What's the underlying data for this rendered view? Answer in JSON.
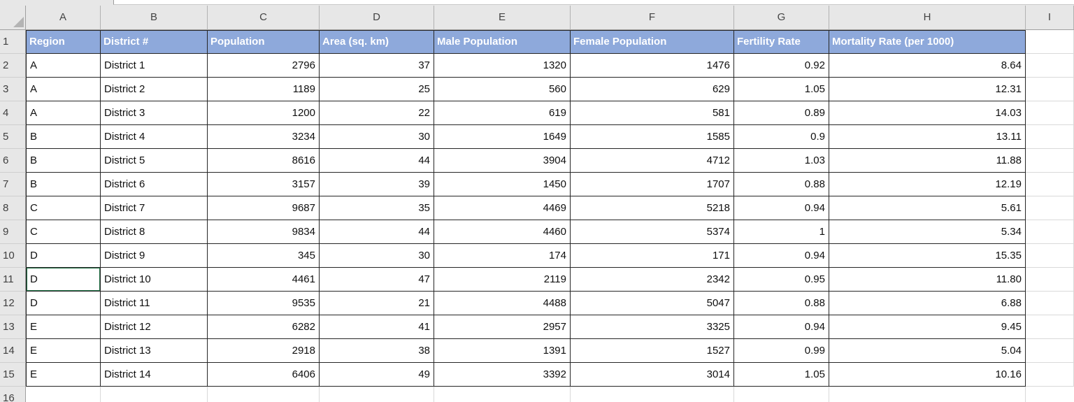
{
  "sheet": {
    "column_letters": [
      "A",
      "B",
      "C",
      "D",
      "E",
      "F",
      "G",
      "H",
      "I"
    ],
    "row_numbers": [
      "1",
      "2",
      "3",
      "4",
      "5",
      "6",
      "7",
      "8",
      "9",
      "10",
      "11",
      "12",
      "13",
      "14",
      "15",
      "16"
    ],
    "header_row": [
      "Region",
      "District #",
      "Population",
      "Area (sq. km)",
      "Male Population",
      "Female Population",
      "Fertility Rate",
      "Mortality Rate (per 1000)"
    ],
    "rows": [
      {
        "region": "A",
        "district": "District 1",
        "population": "2796",
        "area": "37",
        "male": "1320",
        "female": "1476",
        "fertility": "0.92",
        "mortality": "8.64"
      },
      {
        "region": "A",
        "district": "District 2",
        "population": "1189",
        "area": "25",
        "male": "560",
        "female": "629",
        "fertility": "1.05",
        "mortality": "12.31"
      },
      {
        "region": "A",
        "district": "District 3",
        "population": "1200",
        "area": "22",
        "male": "619",
        "female": "581",
        "fertility": "0.89",
        "mortality": "14.03"
      },
      {
        "region": "B",
        "district": "District 4",
        "population": "3234",
        "area": "30",
        "male": "1649",
        "female": "1585",
        "fertility": "0.9",
        "mortality": "13.11"
      },
      {
        "region": "B",
        "district": "District 5",
        "population": "8616",
        "area": "44",
        "male": "3904",
        "female": "4712",
        "fertility": "1.03",
        "mortality": "11.88"
      },
      {
        "region": "B",
        "district": "District 6",
        "population": "3157",
        "area": "39",
        "male": "1450",
        "female": "1707",
        "fertility": "0.88",
        "mortality": "12.19"
      },
      {
        "region": "C",
        "district": "District 7",
        "population": "9687",
        "area": "35",
        "male": "4469",
        "female": "5218",
        "fertility": "0.94",
        "mortality": "5.61"
      },
      {
        "region": "C",
        "district": "District 8",
        "population": "9834",
        "area": "44",
        "male": "4460",
        "female": "5374",
        "fertility": "1",
        "mortality": "5.34"
      },
      {
        "region": "D",
        "district": "District 9",
        "population": "345",
        "area": "30",
        "male": "174",
        "female": "171",
        "fertility": "0.94",
        "mortality": "15.35"
      },
      {
        "region": "D",
        "district": "District 10",
        "population": "4461",
        "area": "47",
        "male": "2119",
        "female": "2342",
        "fertility": "0.95",
        "mortality": "11.80"
      },
      {
        "region": "D",
        "district": "District 11",
        "population": "9535",
        "area": "21",
        "male": "4488",
        "female": "5047",
        "fertility": "0.88",
        "mortality": "6.88"
      },
      {
        "region": "E",
        "district": "District 12",
        "population": "6282",
        "area": "41",
        "male": "2957",
        "female": "3325",
        "fertility": "0.94",
        "mortality": "9.45"
      },
      {
        "region": "E",
        "district": "District 13",
        "population": "2918",
        "area": "38",
        "male": "1391",
        "female": "1527",
        "fertility": "0.99",
        "mortality": "5.04"
      },
      {
        "region": "E",
        "district": "District 14",
        "population": "6406",
        "area": "49",
        "male": "3392",
        "female": "3014",
        "fertility": "1.05",
        "mortality": "10.16"
      }
    ],
    "active_cell": "A11",
    "colors": {
      "header_fill": "#8ea9db",
      "header_text": "#ffffff",
      "header_strip_bg": "#e7e7e7",
      "table_border": "#262626",
      "gridline": "#d9d9d9",
      "active_cell_border": "#217346"
    }
  }
}
